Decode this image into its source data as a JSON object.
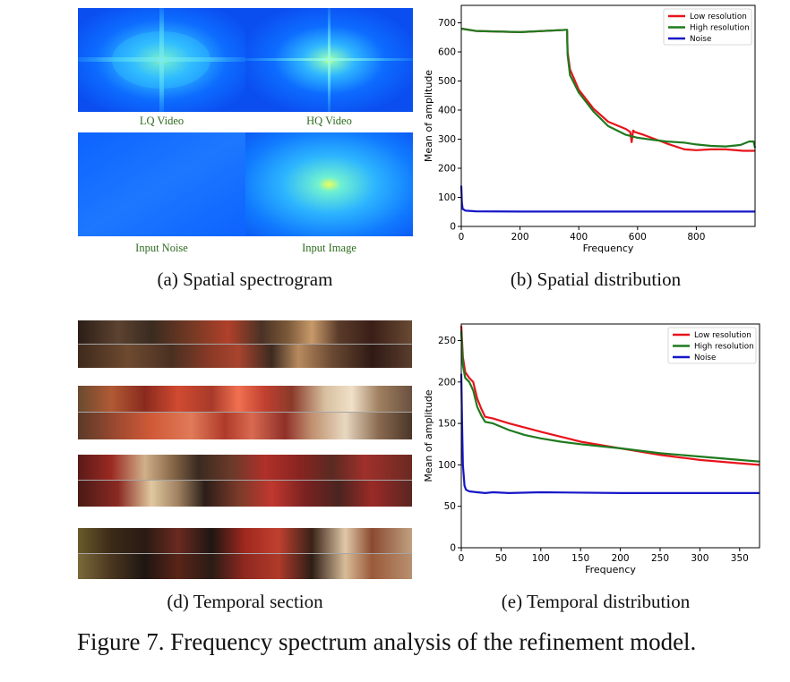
{
  "figure_caption": "Figure 7. Frequency spectrum analysis of the refinement model.",
  "panel_a": {
    "caption": "(a) Spatial spectrogram",
    "labels": [
      "LQ Video",
      "HQ Video",
      "Input Noise",
      "Input Image"
    ]
  },
  "panel_d": {
    "caption": "(d) Temporal section"
  },
  "colors": {
    "low_resolution": "#e8131b",
    "high_resolution": "#1f7a1f",
    "noise": "#1616c8",
    "spectrum_label": "#2e6b1f"
  },
  "chart_data": [
    {
      "id": "spatial",
      "type": "line",
      "caption": "(b) Spatial distribution",
      "xlabel": "Frequency",
      "ylabel": "Mean of amplitude",
      "xlim": [
        0,
        1000
      ],
      "ylim": [
        0,
        760
      ],
      "xticks": [
        0,
        200,
        400,
        600,
        800
      ],
      "yticks": [
        0,
        100,
        200,
        300,
        400,
        500,
        600,
        700
      ],
      "grid": false,
      "legend": "top-right",
      "series": [
        {
          "name": "Low resolution",
          "color": "#e8131b",
          "x": [
            0,
            50,
            200,
            360,
            362,
            370,
            400,
            450,
            500,
            560,
            575,
            580,
            585,
            590,
            620,
            660,
            700,
            760,
            800,
            850,
            900,
            960,
            1000
          ],
          "y": [
            680,
            672,
            668,
            676,
            600,
            540,
            470,
            405,
            360,
            335,
            325,
            290,
            330,
            325,
            315,
            300,
            285,
            265,
            262,
            265,
            265,
            260,
            260
          ]
        },
        {
          "name": "High resolution",
          "color": "#1f7a1f",
          "x": [
            0,
            50,
            200,
            360,
            362,
            370,
            400,
            450,
            500,
            560,
            600,
            650,
            700,
            760,
            800,
            850,
            900,
            950,
            980,
            995,
            1000
          ],
          "y": [
            680,
            672,
            668,
            676,
            590,
            520,
            460,
            395,
            345,
            315,
            305,
            298,
            292,
            288,
            282,
            277,
            275,
            280,
            292,
            292,
            270
          ]
        },
        {
          "name": "Noise",
          "color": "#1616c8",
          "x": [
            0,
            2,
            5,
            15,
            50,
            200,
            400,
            600,
            800,
            1000
          ],
          "y": [
            140,
            80,
            60,
            54,
            52,
            51,
            51,
            51,
            51,
            51
          ]
        }
      ]
    },
    {
      "id": "temporal",
      "type": "line",
      "caption": "(e) Temporal distribution",
      "xlabel": "Frequency",
      "ylabel": "Mean of amplitude",
      "xlim": [
        0,
        375
      ],
      "ylim": [
        0,
        270
      ],
      "xticks": [
        0,
        50,
        100,
        150,
        200,
        250,
        300,
        350
      ],
      "yticks": [
        0,
        50,
        100,
        150,
        200,
        250
      ],
      "grid": false,
      "legend": "top-right",
      "series": [
        {
          "name": "Low resolution",
          "color": "#e8131b",
          "x": [
            0,
            2,
            5,
            10,
            15,
            20,
            25,
            30,
            40,
            60,
            80,
            100,
            125,
            150,
            200,
            250,
            300,
            350,
            375
          ],
          "y": [
            268,
            230,
            212,
            205,
            200,
            180,
            168,
            158,
            156,
            150,
            145,
            140,
            134,
            128,
            120,
            112,
            106,
            102,
            100
          ]
        },
        {
          "name": "High resolution",
          "color": "#1f7a1f",
          "x": [
            0,
            2,
            5,
            10,
            15,
            20,
            25,
            30,
            40,
            60,
            80,
            100,
            125,
            150,
            200,
            250,
            300,
            350,
            375
          ],
          "y": [
            262,
            220,
            205,
            200,
            190,
            170,
            160,
            152,
            150,
            142,
            136,
            132,
            128,
            125,
            120,
            114,
            110,
            106,
            104
          ]
        },
        {
          "name": "Noise",
          "color": "#1616c8",
          "x": [
            0,
            1,
            2,
            4,
            6,
            10,
            20,
            30,
            40,
            60,
            100,
            200,
            300,
            375
          ],
          "y": [
            210,
            150,
            100,
            75,
            70,
            68,
            67,
            66,
            67,
            66,
            67,
            66,
            66,
            66
          ]
        }
      ]
    }
  ]
}
